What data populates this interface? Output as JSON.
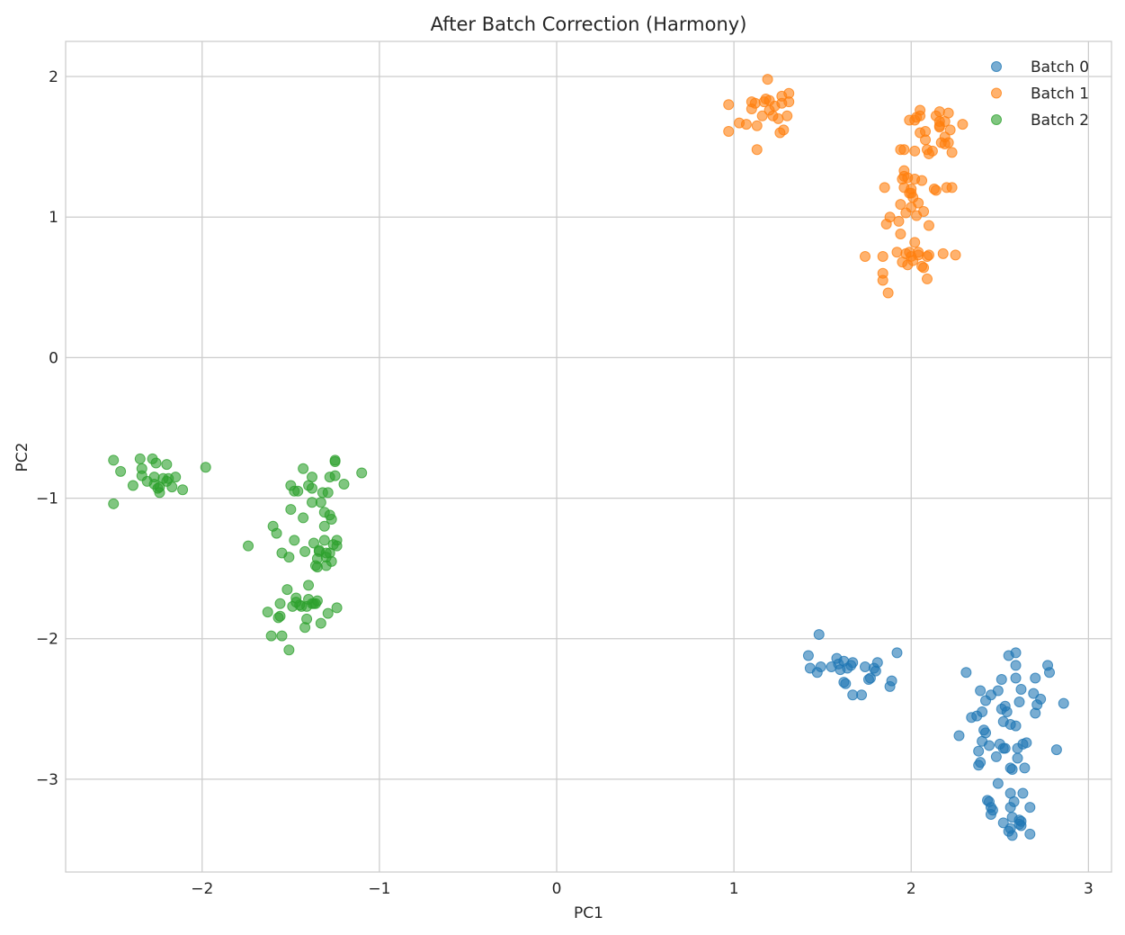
{
  "chart_data": {
    "type": "scatter",
    "title": "After Batch Correction (Harmony)",
    "xlabel": "PC1",
    "ylabel": "PC2",
    "xlim": [
      -2.77,
      3.13
    ],
    "ylim": [
      -3.66,
      2.25
    ],
    "xticks": [
      -2,
      -1,
      0,
      1,
      2,
      3
    ],
    "yticks": [
      2,
      1,
      0,
      -1,
      -2,
      -3
    ],
    "xtick_labels": [
      "−2",
      "−1",
      "0",
      "1",
      "2",
      "3"
    ],
    "ytick_labels": [
      "2",
      "1",
      "0",
      "−1",
      "−2",
      "−3"
    ],
    "grid": true,
    "legend_position": "top-right",
    "series": [
      {
        "name": "Batch 0",
        "color": "#1f77b4",
        "points": [
          [
            1.48,
            -1.97
          ],
          [
            1.42,
            -2.12
          ],
          [
            1.43,
            -2.21
          ],
          [
            1.47,
            -2.24
          ],
          [
            1.49,
            -2.2
          ],
          [
            1.55,
            -2.2
          ],
          [
            1.58,
            -2.14
          ],
          [
            1.59,
            -2.18
          ],
          [
            1.6,
            -2.22
          ],
          [
            1.62,
            -2.16
          ],
          [
            1.62,
            -2.31
          ],
          [
            1.63,
            -2.32
          ],
          [
            1.64,
            -2.21
          ],
          [
            1.66,
            -2.19
          ],
          [
            1.67,
            -2.17
          ],
          [
            1.67,
            -2.4
          ],
          [
            1.72,
            -2.4
          ],
          [
            1.74,
            -2.2
          ],
          [
            1.76,
            -2.29
          ],
          [
            1.77,
            -2.28
          ],
          [
            1.79,
            -2.21
          ],
          [
            1.8,
            -2.23
          ],
          [
            1.81,
            -2.17
          ],
          [
            1.88,
            -2.34
          ],
          [
            1.89,
            -2.3
          ],
          [
            1.92,
            -2.1
          ],
          [
            2.27,
            -2.69
          ],
          [
            2.31,
            -2.24
          ],
          [
            2.34,
            -2.56
          ],
          [
            2.37,
            -2.55
          ],
          [
            2.38,
            -2.9
          ],
          [
            2.38,
            -2.8
          ],
          [
            2.39,
            -2.37
          ],
          [
            2.39,
            -2.88
          ],
          [
            2.4,
            -2.52
          ],
          [
            2.4,
            -2.73
          ],
          [
            2.41,
            -2.65
          ],
          [
            2.42,
            -2.67
          ],
          [
            2.42,
            -2.44
          ],
          [
            2.43,
            -3.15
          ],
          [
            2.44,
            -3.16
          ],
          [
            2.44,
            -2.76
          ],
          [
            2.45,
            -2.4
          ],
          [
            2.45,
            -3.2
          ],
          [
            2.45,
            -3.25
          ],
          [
            2.46,
            -3.22
          ],
          [
            2.48,
            -2.84
          ],
          [
            2.49,
            -2.37
          ],
          [
            2.49,
            -3.03
          ],
          [
            2.5,
            -2.75
          ],
          [
            2.51,
            -2.5
          ],
          [
            2.51,
            -2.29
          ],
          [
            2.52,
            -2.59
          ],
          [
            2.52,
            -2.78
          ],
          [
            2.52,
            -3.31
          ],
          [
            2.53,
            -2.78
          ],
          [
            2.53,
            -2.48
          ],
          [
            2.54,
            -2.52
          ],
          [
            2.55,
            -3.37
          ],
          [
            2.55,
            -2.12
          ],
          [
            2.56,
            -3.1
          ],
          [
            2.56,
            -2.61
          ],
          [
            2.56,
            -3.2
          ],
          [
            2.56,
            -2.92
          ],
          [
            2.56,
            -3.35
          ],
          [
            2.57,
            -3.27
          ],
          [
            2.57,
            -3.4
          ],
          [
            2.57,
            -2.93
          ],
          [
            2.58,
            -3.16
          ],
          [
            2.59,
            -2.1
          ],
          [
            2.59,
            -2.19
          ],
          [
            2.59,
            -2.28
          ],
          [
            2.59,
            -2.62
          ],
          [
            2.6,
            -2.85
          ],
          [
            2.6,
            -2.78
          ],
          [
            2.61,
            -2.45
          ],
          [
            2.61,
            -3.29
          ],
          [
            2.61,
            -3.32
          ],
          [
            2.62,
            -3.3
          ],
          [
            2.62,
            -3.33
          ],
          [
            2.62,
            -2.36
          ],
          [
            2.63,
            -2.75
          ],
          [
            2.63,
            -3.1
          ],
          [
            2.64,
            -2.92
          ],
          [
            2.65,
            -2.74
          ],
          [
            2.67,
            -3.2
          ],
          [
            2.67,
            -3.39
          ],
          [
            2.69,
            -2.39
          ],
          [
            2.7,
            -2.28
          ],
          [
            2.7,
            -2.53
          ],
          [
            2.71,
            -2.47
          ],
          [
            2.73,
            -2.43
          ],
          [
            2.77,
            -2.19
          ],
          [
            2.78,
            -2.24
          ],
          [
            2.82,
            -2.79
          ],
          [
            2.86,
            -2.46
          ]
        ]
      },
      {
        "name": "Batch 1",
        "color": "#ff7f0e",
        "points": [
          [
            0.97,
            1.8
          ],
          [
            0.97,
            1.61
          ],
          [
            1.03,
            1.67
          ],
          [
            1.07,
            1.66
          ],
          [
            1.1,
            1.77
          ],
          [
            1.1,
            1.82
          ],
          [
            1.12,
            1.81
          ],
          [
            1.13,
            1.65
          ],
          [
            1.13,
            1.48
          ],
          [
            1.16,
            1.72
          ],
          [
            1.17,
            1.82
          ],
          [
            1.18,
            1.84
          ],
          [
            1.19,
            1.98
          ],
          [
            1.2,
            1.83
          ],
          [
            1.2,
            1.76
          ],
          [
            1.22,
            1.72
          ],
          [
            1.23,
            1.79
          ],
          [
            1.25,
            1.7
          ],
          [
            1.26,
            1.6
          ],
          [
            1.27,
            1.86
          ],
          [
            1.27,
            1.81
          ],
          [
            1.28,
            1.62
          ],
          [
            1.3,
            1.72
          ],
          [
            1.31,
            1.82
          ],
          [
            1.31,
            1.88
          ],
          [
            1.74,
            0.72
          ],
          [
            1.84,
            0.6
          ],
          [
            1.84,
            0.72
          ],
          [
            1.84,
            0.55
          ],
          [
            1.85,
            1.21
          ],
          [
            1.86,
            0.95
          ],
          [
            1.87,
            0.46
          ],
          [
            1.88,
            1.0
          ],
          [
            1.92,
            0.75
          ],
          [
            1.93,
            0.97
          ],
          [
            1.94,
            1.48
          ],
          [
            1.94,
            1.09
          ],
          [
            1.94,
            0.88
          ],
          [
            1.95,
            1.27
          ],
          [
            1.95,
            0.68
          ],
          [
            1.96,
            1.48
          ],
          [
            1.96,
            1.33
          ],
          [
            1.96,
            1.29
          ],
          [
            1.96,
            1.21
          ],
          [
            1.97,
            0.74
          ],
          [
            1.97,
            1.03
          ],
          [
            1.98,
            1.28
          ],
          [
            1.98,
            0.66
          ],
          [
            1.99,
            1.17
          ],
          [
            1.99,
            1.69
          ],
          [
            1.99,
            0.75
          ],
          [
            2.0,
            1.2
          ],
          [
            2.0,
            1.17
          ],
          [
            2.0,
            1.07
          ],
          [
            2.0,
            0.72
          ],
          [
            2.01,
            1.14
          ],
          [
            2.01,
            0.69
          ],
          [
            2.02,
            1.69
          ],
          [
            2.02,
            1.47
          ],
          [
            2.02,
            1.27
          ],
          [
            2.02,
            0.82
          ],
          [
            2.03,
            1.01
          ],
          [
            2.03,
            1.71
          ],
          [
            2.04,
            0.75
          ],
          [
            2.04,
            1.1
          ],
          [
            2.04,
            0.73
          ],
          [
            2.05,
            1.76
          ],
          [
            2.05,
            1.72
          ],
          [
            2.05,
            1.6
          ],
          [
            2.06,
            0.65
          ],
          [
            2.06,
            1.26
          ],
          [
            2.07,
            0.64
          ],
          [
            2.07,
            1.04
          ],
          [
            2.08,
            1.61
          ],
          [
            2.08,
            1.55
          ],
          [
            2.09,
            0.56
          ],
          [
            2.09,
            0.72
          ],
          [
            2.09,
            1.48
          ],
          [
            2.1,
            1.45
          ],
          [
            2.1,
            0.94
          ],
          [
            2.1,
            0.73
          ],
          [
            2.12,
            1.47
          ],
          [
            2.13,
            1.2
          ],
          [
            2.14,
            1.72
          ],
          [
            2.14,
            1.19
          ],
          [
            2.16,
            1.75
          ],
          [
            2.16,
            1.68
          ],
          [
            2.16,
            1.64
          ],
          [
            2.16,
            1.65
          ],
          [
            2.17,
            1.53
          ],
          [
            2.18,
            0.74
          ],
          [
            2.19,
            1.68
          ],
          [
            2.19,
            1.52
          ],
          [
            2.19,
            1.57
          ],
          [
            2.2,
            1.21
          ],
          [
            2.21,
            1.53
          ],
          [
            2.21,
            1.74
          ],
          [
            2.22,
            1.62
          ],
          [
            2.23,
            1.21
          ],
          [
            2.23,
            1.46
          ],
          [
            2.25,
            0.73
          ],
          [
            2.29,
            1.66
          ]
        ]
      },
      {
        "name": "Batch 2",
        "color": "#2ca02c",
        "points": [
          [
            -2.5,
            -1.04
          ],
          [
            -2.5,
            -0.73
          ],
          [
            -2.46,
            -0.81
          ],
          [
            -2.39,
            -0.91
          ],
          [
            -2.35,
            -0.72
          ],
          [
            -2.34,
            -0.79
          ],
          [
            -2.34,
            -0.84
          ],
          [
            -2.31,
            -0.88
          ],
          [
            -2.28,
            -0.72
          ],
          [
            -2.27,
            -0.85
          ],
          [
            -2.27,
            -0.9
          ],
          [
            -2.26,
            -0.75
          ],
          [
            -2.25,
            -0.93
          ],
          [
            -2.24,
            -0.96
          ],
          [
            -2.24,
            -0.92
          ],
          [
            -2.22,
            -0.86
          ],
          [
            -2.2,
            -0.88
          ],
          [
            -2.2,
            -0.76
          ],
          [
            -2.19,
            -0.86
          ],
          [
            -2.17,
            -0.92
          ],
          [
            -2.15,
            -0.85
          ],
          [
            -2.11,
            -0.94
          ],
          [
            -1.98,
            -0.78
          ],
          [
            -1.74,
            -1.34
          ],
          [
            -1.63,
            -1.81
          ],
          [
            -1.61,
            -1.98
          ],
          [
            -1.6,
            -1.2
          ],
          [
            -1.58,
            -1.25
          ],
          [
            -1.57,
            -1.85
          ],
          [
            -1.56,
            -1.84
          ],
          [
            -1.56,
            -1.75
          ],
          [
            -1.55,
            -1.98
          ],
          [
            -1.55,
            -1.39
          ],
          [
            -1.52,
            -1.65
          ],
          [
            -1.51,
            -2.08
          ],
          [
            -1.51,
            -1.42
          ],
          [
            -1.5,
            -0.91
          ],
          [
            -1.5,
            -1.08
          ],
          [
            -1.49,
            -1.77
          ],
          [
            -1.48,
            -1.3
          ],
          [
            -1.48,
            -0.95
          ],
          [
            -1.47,
            -1.71
          ],
          [
            -1.47,
            -1.74
          ],
          [
            -1.46,
            -0.95
          ],
          [
            -1.45,
            -1.76
          ],
          [
            -1.44,
            -1.77
          ],
          [
            -1.43,
            -1.14
          ],
          [
            -1.43,
            -0.79
          ],
          [
            -1.42,
            -1.38
          ],
          [
            -1.42,
            -1.92
          ],
          [
            -1.41,
            -1.77
          ],
          [
            -1.41,
            -1.86
          ],
          [
            -1.4,
            -1.62
          ],
          [
            -1.4,
            -1.72
          ],
          [
            -1.4,
            -0.91
          ],
          [
            -1.38,
            -0.85
          ],
          [
            -1.38,
            -0.93
          ],
          [
            -1.38,
            -1.03
          ],
          [
            -1.38,
            -1.75
          ],
          [
            -1.37,
            -1.32
          ],
          [
            -1.37,
            -1.75
          ],
          [
            -1.36,
            -1.48
          ],
          [
            -1.36,
            -1.75
          ],
          [
            -1.35,
            -1.73
          ],
          [
            -1.35,
            -1.49
          ],
          [
            -1.35,
            -1.43
          ],
          [
            -1.34,
            -1.38
          ],
          [
            -1.34,
            -1.37
          ],
          [
            -1.33,
            -1.89
          ],
          [
            -1.33,
            -1.03
          ],
          [
            -1.32,
            -0.96
          ],
          [
            -1.31,
            -1.2
          ],
          [
            -1.31,
            -1.3
          ],
          [
            -1.31,
            -1.1
          ],
          [
            -1.3,
            -1.39
          ],
          [
            -1.3,
            -1.42
          ],
          [
            -1.3,
            -1.48
          ],
          [
            -1.29,
            -0.96
          ],
          [
            -1.29,
            -1.82
          ],
          [
            -1.28,
            -0.85
          ],
          [
            -1.28,
            -1.12
          ],
          [
            -1.28,
            -1.39
          ],
          [
            -1.27,
            -1.15
          ],
          [
            -1.27,
            -1.45
          ],
          [
            -1.26,
            -1.33
          ],
          [
            -1.25,
            -0.84
          ],
          [
            -1.25,
            -0.74
          ],
          [
            -1.25,
            -0.73
          ],
          [
            -1.24,
            -1.3
          ],
          [
            -1.24,
            -1.34
          ],
          [
            -1.24,
            -1.78
          ],
          [
            -1.2,
            -0.9
          ],
          [
            -1.1,
            -0.82
          ]
        ]
      }
    ]
  }
}
